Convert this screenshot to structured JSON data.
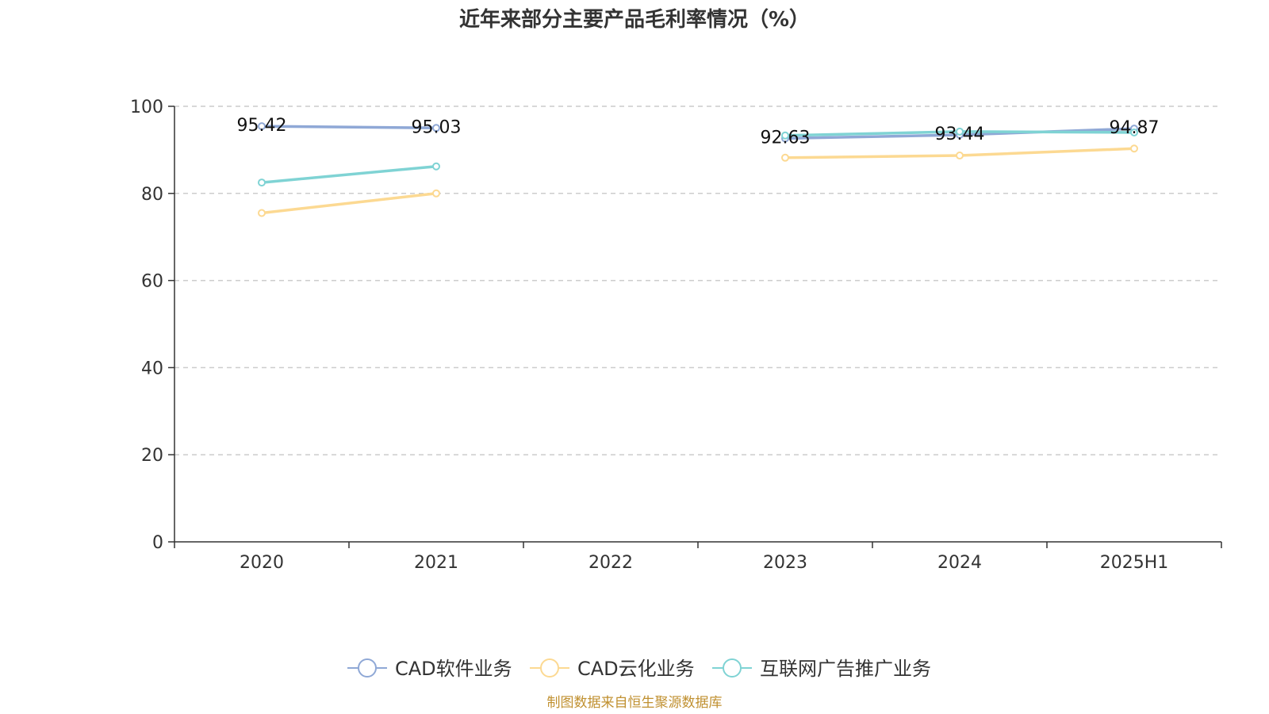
{
  "chart_data": {
    "type": "line",
    "title": "近年来部分主要产品毛利率情况（%）",
    "categories": [
      "2020",
      "2021",
      "2022",
      "2023",
      "2024",
      "2025H1"
    ],
    "ylim": [
      0,
      100
    ],
    "yticks": [
      "0",
      "20",
      "40",
      "60",
      "80",
      "100"
    ],
    "grid": true,
    "legend_position": "bottom",
    "series": [
      {
        "name": "CAD软件业务",
        "color": "#8fa8d6",
        "values": [
          95.42,
          95.03,
          null,
          92.63,
          93.44,
          94.87
        ],
        "labels": [
          "95.42",
          "95.03",
          null,
          "92.63",
          "93.44",
          "94.87"
        ]
      },
      {
        "name": "CAD云化业务",
        "color": "#fcd992",
        "values": [
          75.5,
          80.0,
          null,
          88.2,
          88.7,
          90.3
        ],
        "labels": [
          null,
          null,
          null,
          null,
          null,
          null
        ]
      },
      {
        "name": "互联网广告推广业务",
        "color": "#7fd3d4",
        "values": [
          82.5,
          86.2,
          null,
          93.3,
          94.2,
          94.0
        ],
        "labels": [
          null,
          null,
          null,
          null,
          null,
          null
        ]
      }
    ]
  },
  "source_note": "制图数据来自恒生聚源数据库"
}
